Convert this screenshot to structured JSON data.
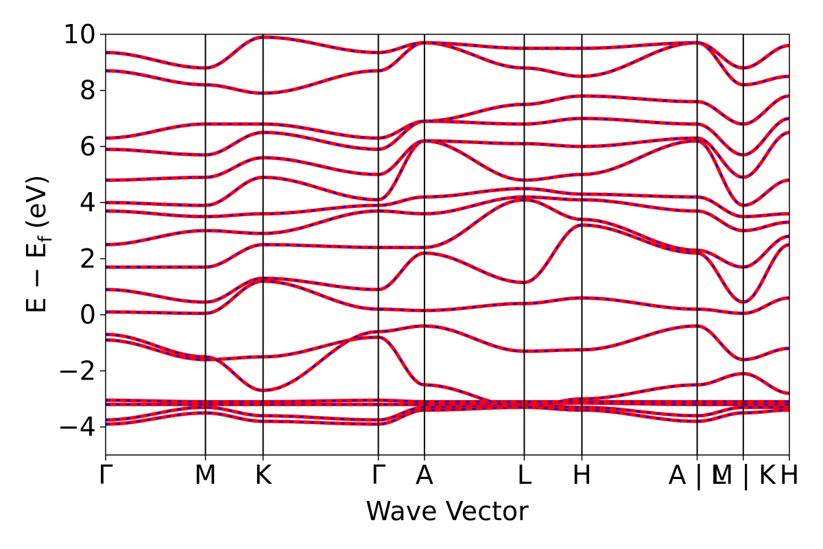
{
  "chart_data": {
    "type": "line",
    "title": "",
    "xlabel": "Wave Vector",
    "ylabel": "E − E",
    "ylabel_subscript": "f",
    "ylabel_unit": "(eV)",
    "ylim": [
      -5,
      10
    ],
    "y_ticks": [
      -4,
      -2,
      0,
      2,
      4,
      6,
      8,
      10
    ],
    "y_tick_labels": [
      "−4",
      "−2",
      "0",
      "2",
      "4",
      "6",
      "8",
      "10"
    ],
    "x_kpoint_positions": [
      0,
      1.732,
      2.732,
      4.732,
      5.532,
      7.264,
      8.264,
      10.264,
      11.064,
      11.864
    ],
    "x_tick_labels": [
      "Γ",
      "M",
      "K",
      "Γ",
      "A",
      "L",
      "H",
      "A | L",
      "M | K",
      "H"
    ],
    "grid": false,
    "legend": "none",
    "series_colors": {
      "primary": "#ff0000",
      "overlay": "#0000ff"
    },
    "series_styles": {
      "primary": "solid",
      "overlay": "dashed"
    },
    "note_values": "Band energies approximated from the figure at the high-symmetry points; each band is drawn as both a solid red line and an overlaid dashed blue line.",
    "bands": [
      {
        "x": [
          0,
          1.732,
          2.732,
          4.732,
          5.532,
          7.264,
          8.264,
          10.264,
          11.064,
          11.864
        ],
        "y": [
          -3.9,
          -3.5,
          -3.8,
          -3.9,
          -3.4,
          -3.3,
          -3.4,
          -3.8,
          -3.5,
          -3.4
        ]
      },
      {
        "x": [
          0,
          1.732,
          2.732,
          4.732,
          5.532,
          7.264,
          8.264,
          10.264,
          11.064,
          11.864
        ],
        "y": [
          -3.75,
          -3.3,
          -3.6,
          -3.75,
          -3.3,
          -3.2,
          -3.3,
          -3.6,
          -3.3,
          -3.3
        ]
      },
      {
        "x": [
          0,
          1.732,
          2.732,
          4.732,
          5.532,
          7.264,
          8.264,
          10.264,
          11.064,
          11.864
        ],
        "y": [
          -3.2,
          -3.2,
          -3.2,
          -3.2,
          -3.2,
          -3.15,
          -3.15,
          -3.2,
          -3.2,
          -3.2
        ]
      },
      {
        "x": [
          0,
          1.732,
          2.732,
          4.732,
          5.532,
          7.264,
          8.264,
          10.264,
          11.064,
          11.864
        ],
        "y": [
          -3.05,
          -3.1,
          -3.1,
          -3.05,
          -3.1,
          -3.1,
          -3.1,
          -3.1,
          -3.1,
          -3.1
        ]
      },
      {
        "x": [
          0,
          1.732,
          2.732,
          4.732,
          5.532,
          7.264,
          8.264,
          10.264,
          11.064,
          11.864
        ],
        "y": [
          -0.9,
          -1.6,
          -1.5,
          -0.8,
          -2.5,
          -3.3,
          -3.0,
          -2.5,
          -2.1,
          -2.8
        ]
      },
      {
        "x": [
          0,
          1.732,
          2.732,
          4.732,
          5.532,
          7.264,
          8.264,
          10.264,
          11.064,
          11.864
        ],
        "y": [
          -0.7,
          -1.5,
          -2.7,
          -0.6,
          -0.4,
          -1.3,
          -1.25,
          -0.4,
          -1.6,
          -1.2
        ]
      },
      {
        "x": [
          0,
          1.732,
          2.732,
          4.732,
          5.532,
          7.264,
          8.264,
          10.264,
          11.064,
          11.864
        ],
        "y": [
          0.1,
          0.05,
          1.2,
          0.2,
          0.15,
          0.4,
          0.6,
          0.2,
          0.05,
          0.6
        ]
      },
      {
        "x": [
          0,
          1.732,
          2.732,
          4.732,
          5.532,
          7.264,
          8.264,
          10.264,
          11.064,
          11.864
        ],
        "y": [
          0.9,
          0.45,
          1.3,
          0.9,
          2.2,
          1.15,
          3.2,
          2.2,
          0.45,
          2.5
        ]
      },
      {
        "x": [
          0,
          1.732,
          2.732,
          4.732,
          5.532,
          7.264,
          8.264,
          10.264,
          11.064,
          11.864
        ],
        "y": [
          1.7,
          1.7,
          2.5,
          2.4,
          2.4,
          4.1,
          3.4,
          2.3,
          1.7,
          2.8
        ]
      },
      {
        "x": [
          0,
          1.732,
          2.732,
          4.732,
          5.532,
          7.264,
          8.264,
          10.264,
          11.064,
          11.864
        ],
        "y": [
          2.5,
          3.0,
          2.9,
          3.7,
          3.6,
          4.2,
          4.1,
          3.7,
          3.0,
          3.3
        ]
      },
      {
        "x": [
          0,
          1.732,
          2.732,
          4.732,
          5.532,
          7.264,
          8.264,
          10.264,
          11.064,
          11.864
        ],
        "y": [
          3.7,
          3.5,
          3.6,
          3.9,
          4.2,
          4.5,
          4.3,
          4.2,
          3.5,
          3.6
        ]
      },
      {
        "x": [
          0,
          1.732,
          2.732,
          4.732,
          5.532,
          7.264,
          8.264,
          10.264,
          11.064,
          11.864
        ],
        "y": [
          4.0,
          3.9,
          4.9,
          4.1,
          6.2,
          4.8,
          5.0,
          6.2,
          3.9,
          4.8
        ]
      },
      {
        "x": [
          0,
          1.732,
          2.732,
          4.732,
          5.532,
          7.264,
          8.264,
          10.264,
          11.064,
          11.864
        ],
        "y": [
          4.8,
          4.9,
          5.6,
          5.0,
          6.2,
          6.1,
          6.0,
          6.3,
          4.9,
          6.5
        ]
      },
      {
        "x": [
          0,
          1.732,
          2.732,
          4.732,
          5.532,
          7.264,
          8.264,
          10.264,
          11.064,
          11.864
        ],
        "y": [
          5.9,
          5.7,
          6.5,
          5.9,
          6.9,
          6.8,
          7.0,
          6.8,
          5.7,
          7.0
        ]
      },
      {
        "x": [
          0,
          1.732,
          2.732,
          4.732,
          5.532,
          7.264,
          8.264,
          10.264,
          11.064,
          11.864
        ],
        "y": [
          6.3,
          6.8,
          6.8,
          6.3,
          6.9,
          7.5,
          7.8,
          7.6,
          6.8,
          7.8
        ]
      },
      {
        "x": [
          0,
          1.732,
          2.732,
          4.732,
          5.532,
          7.264,
          8.264,
          10.264,
          11.064,
          11.864
        ],
        "y": [
          8.7,
          8.2,
          7.9,
          8.7,
          9.7,
          8.8,
          8.5,
          9.7,
          8.2,
          8.5
        ]
      },
      {
        "x": [
          0,
          1.732,
          2.732,
          4.732,
          5.532,
          7.264,
          8.264,
          10.264,
          11.064,
          11.864
        ],
        "y": [
          9.35,
          8.8,
          9.9,
          9.35,
          9.7,
          9.5,
          9.5,
          9.7,
          8.8,
          9.6
        ]
      }
    ]
  }
}
